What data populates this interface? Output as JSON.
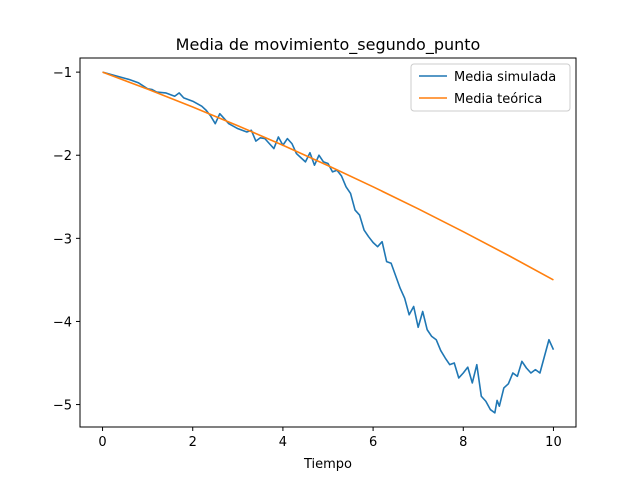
{
  "chart_data": {
    "type": "line",
    "title": "Media de movimiento_segundo_punto",
    "xlabel": "Tiempo",
    "ylabel": "",
    "xlim": [
      -0.5,
      10.5
    ],
    "ylim": [
      -5.27,
      -0.83
    ],
    "xticks": [
      0,
      2,
      4,
      6,
      8,
      10
    ],
    "xtick_labels": [
      "0",
      "2",
      "4",
      "6",
      "8",
      "10"
    ],
    "yticks": [
      -1,
      -2,
      -3,
      -4,
      -5
    ],
    "ytick_labels": [
      "−1",
      "−2",
      "−3",
      "−4",
      "−5"
    ],
    "grid": false,
    "legend_position": "top-right",
    "series": [
      {
        "name": "Media simulada",
        "color": "#1f77b4",
        "x": [
          0,
          0.2,
          0.4,
          0.6,
          0.8,
          1.0,
          1.1,
          1.2,
          1.4,
          1.6,
          1.7,
          1.8,
          2.0,
          2.2,
          2.3,
          2.4,
          2.5,
          2.6,
          2.7,
          2.8,
          3.0,
          3.2,
          3.3,
          3.4,
          3.5,
          3.6,
          3.7,
          3.8,
          3.9,
          4.0,
          4.1,
          4.2,
          4.3,
          4.4,
          4.5,
          4.6,
          4.7,
          4.8,
          4.9,
          5.0,
          5.1,
          5.2,
          5.3,
          5.4,
          5.5,
          5.6,
          5.7,
          5.8,
          5.9,
          6.0,
          6.1,
          6.2,
          6.3,
          6.4,
          6.5,
          6.6,
          6.7,
          6.8,
          6.9,
          7.0,
          7.1,
          7.2,
          7.3,
          7.4,
          7.5,
          7.6,
          7.7,
          7.8,
          7.9,
          8.0,
          8.1,
          8.2,
          8.3,
          8.4,
          8.5,
          8.6,
          8.7,
          8.75,
          8.8,
          8.9,
          9.0,
          9.1,
          9.2,
          9.3,
          9.4,
          9.5,
          9.6,
          9.7,
          9.8,
          9.9,
          10.0
        ],
        "y": [
          -1.0,
          -1.03,
          -1.06,
          -1.09,
          -1.13,
          -1.2,
          -1.21,
          -1.24,
          -1.25,
          -1.29,
          -1.25,
          -1.31,
          -1.35,
          -1.41,
          -1.46,
          -1.53,
          -1.62,
          -1.5,
          -1.56,
          -1.62,
          -1.68,
          -1.72,
          -1.7,
          -1.83,
          -1.79,
          -1.8,
          -1.86,
          -1.92,
          -1.78,
          -1.88,
          -1.8,
          -1.86,
          -1.98,
          -2.03,
          -2.08,
          -1.97,
          -2.12,
          -2.0,
          -2.08,
          -2.1,
          -2.2,
          -2.18,
          -2.25,
          -2.38,
          -2.46,
          -2.66,
          -2.72,
          -2.9,
          -2.98,
          -3.05,
          -3.1,
          -3.04,
          -3.28,
          -3.3,
          -3.45,
          -3.6,
          -3.72,
          -3.92,
          -3.82,
          -4.07,
          -3.88,
          -4.1,
          -4.18,
          -4.22,
          -4.35,
          -4.44,
          -4.52,
          -4.5,
          -4.68,
          -4.62,
          -4.55,
          -4.74,
          -4.52,
          -4.9,
          -4.96,
          -5.06,
          -5.1,
          -4.95,
          -5.02,
          -4.8,
          -4.75,
          -4.62,
          -4.66,
          -4.48,
          -4.56,
          -4.62,
          -4.58,
          -4.62,
          -4.42,
          -4.22,
          -4.34
        ]
      },
      {
        "name": "Media teórica",
        "color": "#ff7f0e",
        "function": "y = -1 - 0.2*x - 0.005*x^2",
        "x": [
          0,
          1,
          2,
          3,
          4,
          5,
          6,
          7,
          8,
          9,
          10
        ],
        "y": [
          -1.0,
          -1.205,
          -1.42,
          -1.645,
          -1.88,
          -2.125,
          -2.38,
          -2.645,
          -2.92,
          -3.205,
          -3.5
        ]
      }
    ]
  }
}
